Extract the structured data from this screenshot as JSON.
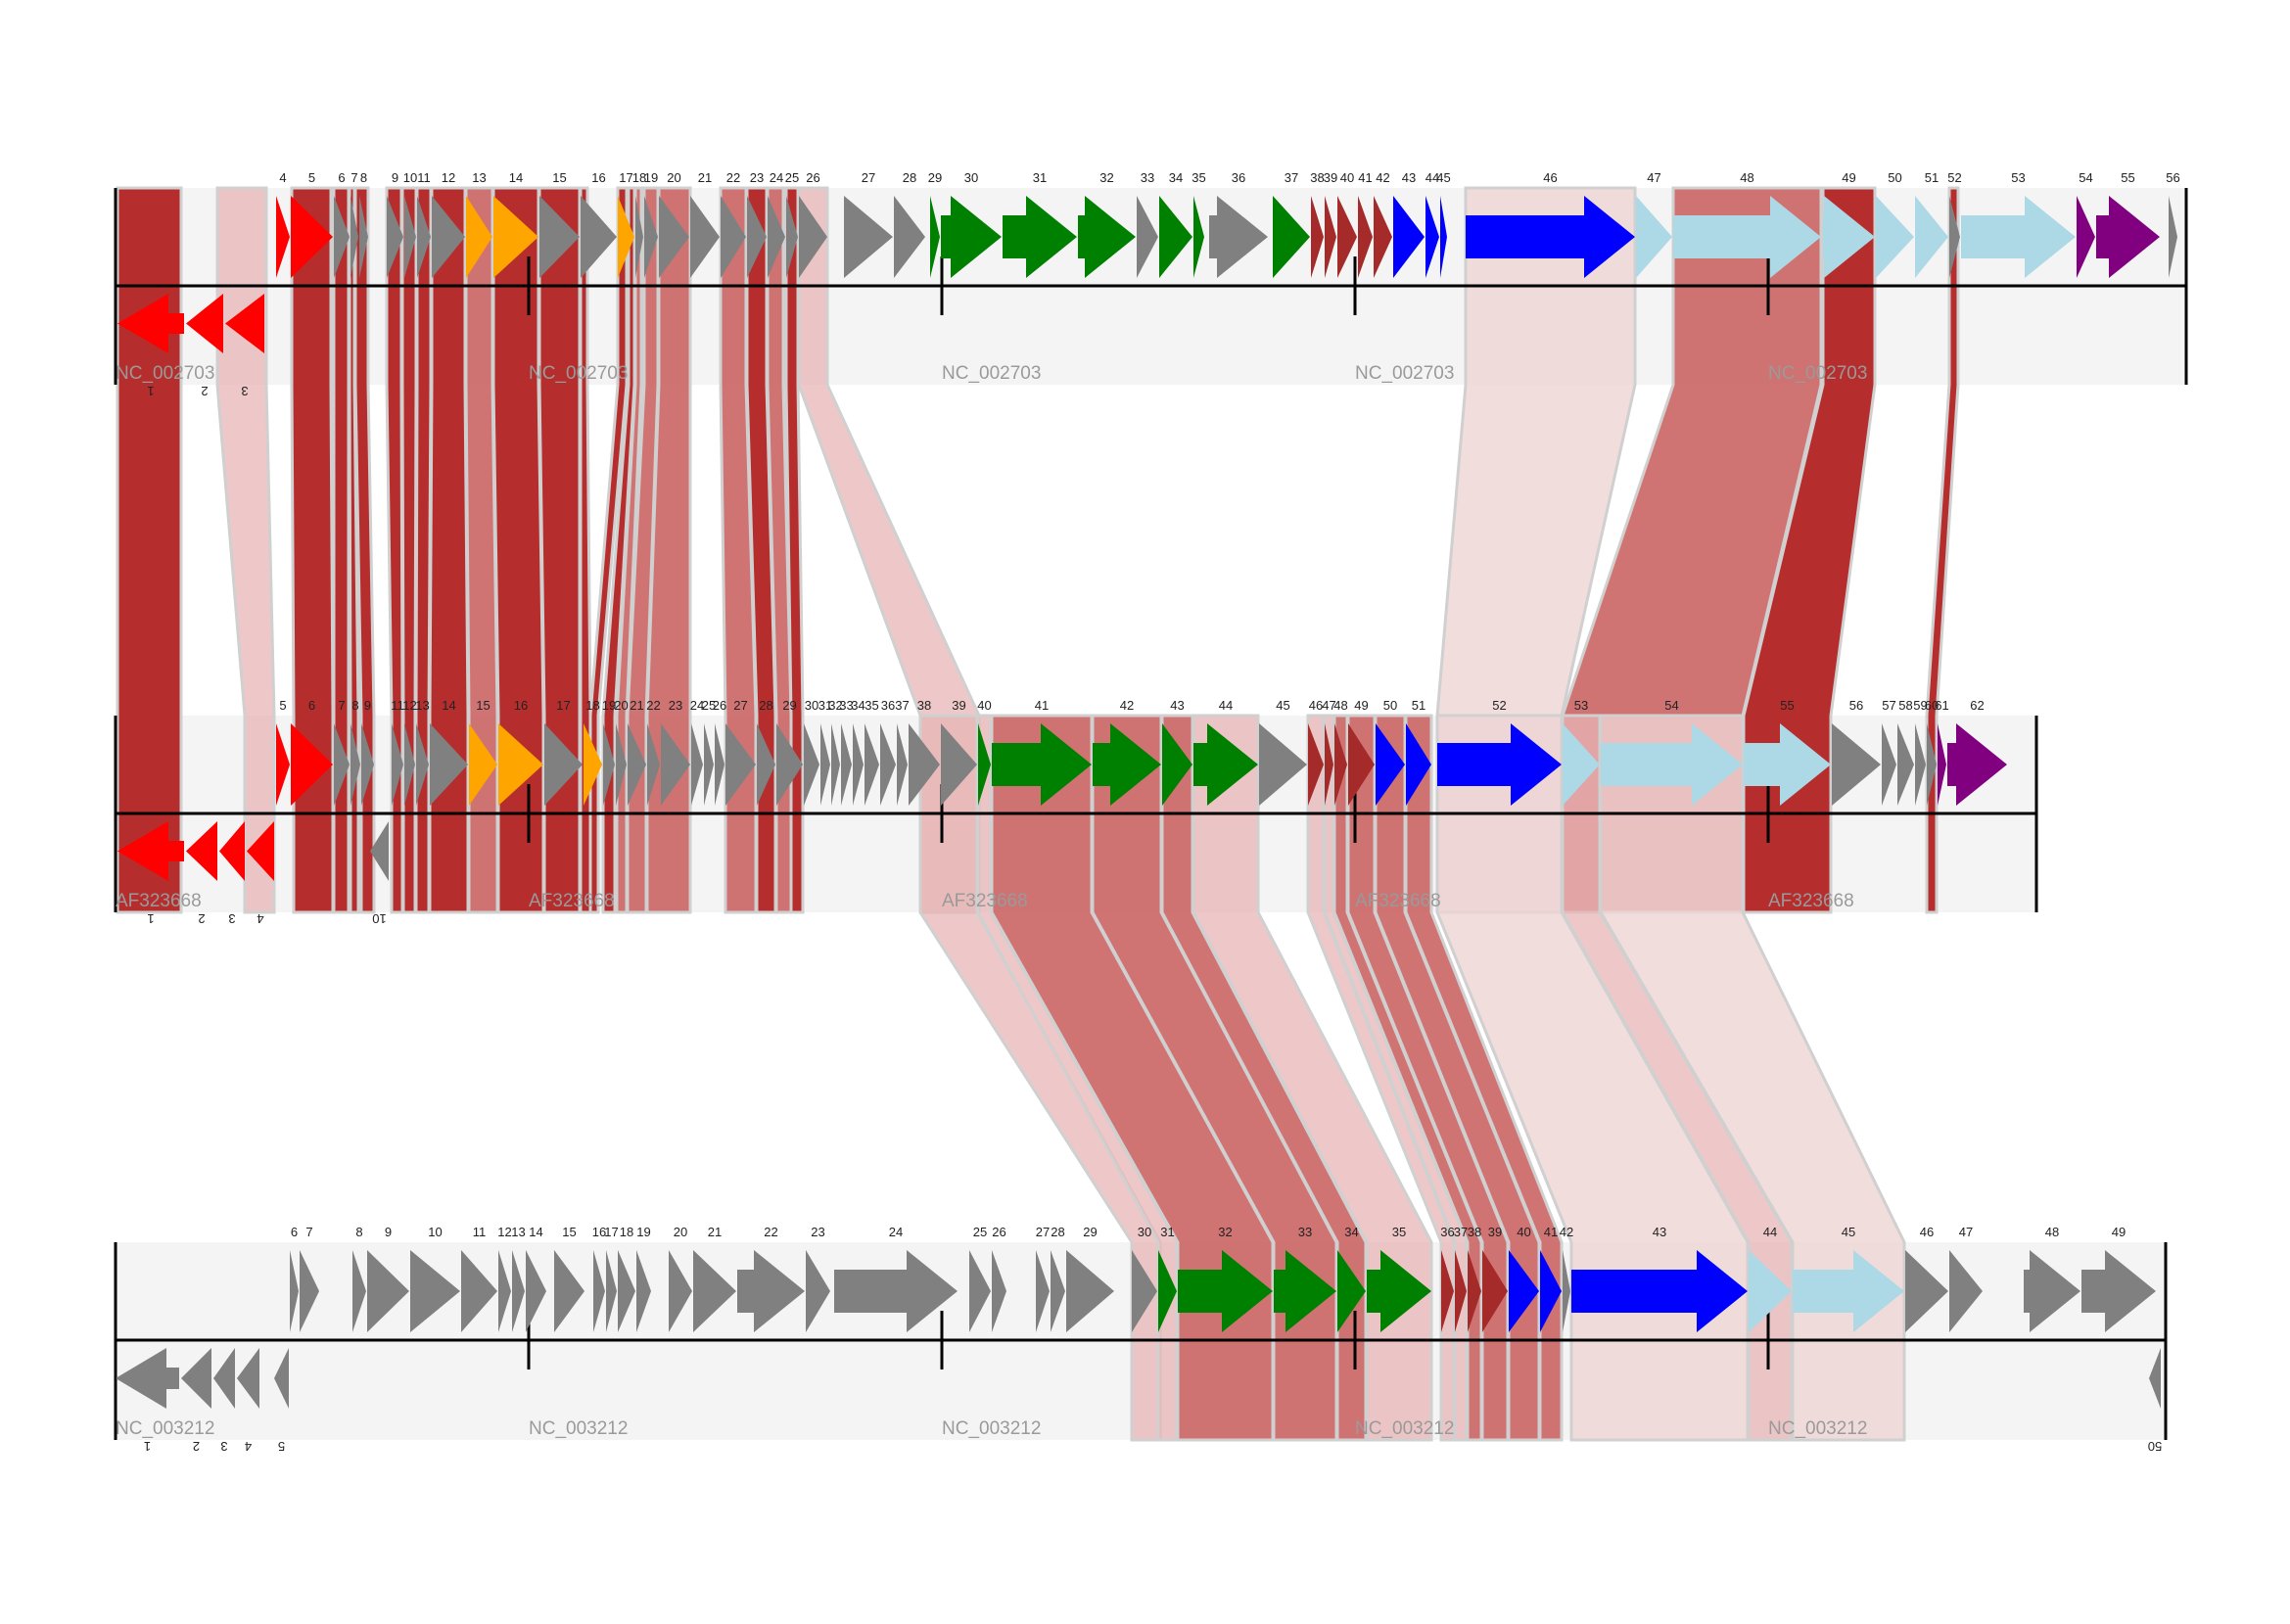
{
  "diagram": {
    "type": "genome-comparison",
    "colors": {
      "track_bg": "#f4f4f4",
      "axis": "#000000",
      "link_border": "#d0d0d0",
      "link_strong": "#b22222",
      "link_medium": "#c85a5a",
      "link_weak": "#e8b5b5",
      "link_faint": "#efd4d4"
    },
    "gene_colors": {
      "red": "#ff0000",
      "grey": "#808080",
      "orange": "#ffa500",
      "green": "#008000",
      "brown": "#a52a2a",
      "blue": "#0000ff",
      "lightblue": "#add8e6",
      "purple": "#800080"
    },
    "tracks": [
      {
        "name": "NC_002703",
        "genes": [
          {
            "id": "1",
            "color": "red",
            "strand": "-"
          },
          {
            "id": "2",
            "color": "red",
            "strand": "-"
          },
          {
            "id": "3",
            "color": "red",
            "strand": "-"
          },
          {
            "id": "4",
            "color": "red",
            "strand": "+"
          },
          {
            "id": "5",
            "color": "red",
            "strand": "+"
          },
          {
            "id": "6",
            "color": "grey",
            "strand": "+"
          },
          {
            "id": "7",
            "color": "grey",
            "strand": "+"
          },
          {
            "id": "8",
            "color": "grey",
            "strand": "+"
          },
          {
            "id": "9",
            "color": "grey",
            "strand": "+"
          },
          {
            "id": "10",
            "color": "grey",
            "strand": "+"
          },
          {
            "id": "11",
            "color": "grey",
            "strand": "+"
          },
          {
            "id": "12",
            "color": "grey",
            "strand": "+"
          },
          {
            "id": "13",
            "color": "orange",
            "strand": "+"
          },
          {
            "id": "14",
            "color": "orange",
            "strand": "+"
          },
          {
            "id": "15",
            "color": "grey",
            "strand": "+"
          },
          {
            "id": "16",
            "color": "grey",
            "strand": "+"
          },
          {
            "id": "17",
            "color": "orange",
            "strand": "+"
          },
          {
            "id": "18",
            "color": "grey",
            "strand": "+"
          },
          {
            "id": "19",
            "color": "grey",
            "strand": "+"
          },
          {
            "id": "20",
            "color": "grey",
            "strand": "+"
          },
          {
            "id": "21",
            "color": "grey",
            "strand": "+"
          },
          {
            "id": "22",
            "color": "grey",
            "strand": "+"
          },
          {
            "id": "23",
            "color": "grey",
            "strand": "+"
          },
          {
            "id": "24",
            "color": "grey",
            "strand": "+"
          },
          {
            "id": "25",
            "color": "grey",
            "strand": "+"
          },
          {
            "id": "26",
            "color": "grey",
            "strand": "+"
          },
          {
            "id": "27",
            "color": "grey",
            "strand": "+"
          },
          {
            "id": "28",
            "color": "grey",
            "strand": "+"
          },
          {
            "id": "29",
            "color": "green",
            "strand": "+"
          },
          {
            "id": "30",
            "color": "green",
            "strand": "+"
          },
          {
            "id": "31",
            "color": "green",
            "strand": "+"
          },
          {
            "id": "32",
            "color": "green",
            "strand": "+"
          },
          {
            "id": "33",
            "color": "grey",
            "strand": "+"
          },
          {
            "id": "34",
            "color": "green",
            "strand": "+"
          },
          {
            "id": "35",
            "color": "green",
            "strand": "+"
          },
          {
            "id": "36",
            "color": "grey",
            "strand": "+"
          },
          {
            "id": "37",
            "color": "green",
            "strand": "+"
          },
          {
            "id": "38",
            "color": "brown",
            "strand": "+"
          },
          {
            "id": "39",
            "color": "brown",
            "strand": "+"
          },
          {
            "id": "40",
            "color": "brown",
            "strand": "+"
          },
          {
            "id": "41",
            "color": "brown",
            "strand": "+"
          },
          {
            "id": "42",
            "color": "brown",
            "strand": "+"
          },
          {
            "id": "43",
            "color": "blue",
            "strand": "+"
          },
          {
            "id": "44",
            "color": "blue",
            "strand": "+"
          },
          {
            "id": "45",
            "color": "blue",
            "strand": "+"
          },
          {
            "id": "46",
            "color": "blue",
            "strand": "+"
          },
          {
            "id": "47",
            "color": "lightblue",
            "strand": "+"
          },
          {
            "id": "48",
            "color": "lightblue",
            "strand": "+"
          },
          {
            "id": "49",
            "color": "lightblue",
            "strand": "+"
          },
          {
            "id": "50",
            "color": "lightblue",
            "strand": "+"
          },
          {
            "id": "51",
            "color": "lightblue",
            "strand": "+"
          },
          {
            "id": "52",
            "color": "grey",
            "strand": "+"
          },
          {
            "id": "53",
            "color": "lightblue",
            "strand": "+"
          },
          {
            "id": "54",
            "color": "purple",
            "strand": "+"
          },
          {
            "id": "55",
            "color": "purple",
            "strand": "+"
          },
          {
            "id": "56",
            "color": "grey",
            "strand": "+"
          }
        ]
      },
      {
        "name": "AF323668",
        "genes": [
          {
            "id": "1",
            "color": "red",
            "strand": "-"
          },
          {
            "id": "2",
            "color": "red",
            "strand": "-"
          },
          {
            "id": "3",
            "color": "red",
            "strand": "-"
          },
          {
            "id": "4",
            "color": "red",
            "strand": "-"
          },
          {
            "id": "5",
            "color": "red",
            "strand": "+"
          },
          {
            "id": "6",
            "color": "red",
            "strand": "+"
          },
          {
            "id": "7",
            "color": "grey",
            "strand": "+"
          },
          {
            "id": "8",
            "color": "grey",
            "strand": "+"
          },
          {
            "id": "9",
            "color": "grey",
            "strand": "+"
          },
          {
            "id": "10",
            "color": "grey",
            "strand": "-"
          },
          {
            "id": "11",
            "color": "grey",
            "strand": "+"
          },
          {
            "id": "12",
            "color": "grey",
            "strand": "+"
          },
          {
            "id": "13",
            "color": "grey",
            "strand": "+"
          },
          {
            "id": "14",
            "color": "grey",
            "strand": "+"
          },
          {
            "id": "15",
            "color": "orange",
            "strand": "+"
          },
          {
            "id": "16",
            "color": "orange",
            "strand": "+"
          },
          {
            "id": "17",
            "color": "grey",
            "strand": "+"
          },
          {
            "id": "18",
            "color": "orange",
            "strand": "+"
          },
          {
            "id": "19",
            "color": "grey",
            "strand": "+"
          },
          {
            "id": "20",
            "color": "grey",
            "strand": "+"
          },
          {
            "id": "21",
            "color": "grey",
            "strand": "+"
          },
          {
            "id": "22",
            "color": "grey",
            "strand": "+"
          },
          {
            "id": "23",
            "color": "grey",
            "strand": "+"
          },
          {
            "id": "24",
            "color": "grey",
            "strand": "+"
          },
          {
            "id": "25",
            "color": "grey",
            "strand": "+"
          },
          {
            "id": "26",
            "color": "grey",
            "strand": "+"
          },
          {
            "id": "27",
            "color": "grey",
            "strand": "+"
          },
          {
            "id": "28",
            "color": "grey",
            "strand": "+"
          },
          {
            "id": "29",
            "color": "grey",
            "strand": "+"
          },
          {
            "id": "30",
            "color": "grey",
            "strand": "+"
          },
          {
            "id": "31",
            "color": "grey",
            "strand": "+"
          },
          {
            "id": "32",
            "color": "grey",
            "strand": "+"
          },
          {
            "id": "33",
            "color": "grey",
            "strand": "+"
          },
          {
            "id": "34",
            "color": "grey",
            "strand": "+"
          },
          {
            "id": "35",
            "color": "grey",
            "strand": "+"
          },
          {
            "id": "36",
            "color": "grey",
            "strand": "+"
          },
          {
            "id": "37",
            "color": "grey",
            "strand": "+"
          },
          {
            "id": "38",
            "color": "grey",
            "strand": "+"
          },
          {
            "id": "39",
            "color": "grey",
            "strand": "+"
          },
          {
            "id": "40",
            "color": "green",
            "strand": "+"
          },
          {
            "id": "41",
            "color": "green",
            "strand": "+"
          },
          {
            "id": "42",
            "color": "green",
            "strand": "+"
          },
          {
            "id": "43",
            "color": "green",
            "strand": "+"
          },
          {
            "id": "44",
            "color": "green",
            "strand": "+"
          },
          {
            "id": "45",
            "color": "grey",
            "strand": "+"
          },
          {
            "id": "46",
            "color": "brown",
            "strand": "+"
          },
          {
            "id": "47",
            "color": "brown",
            "strand": "+"
          },
          {
            "id": "48",
            "color": "brown",
            "strand": "+"
          },
          {
            "id": "49",
            "color": "brown",
            "strand": "+"
          },
          {
            "id": "50",
            "color": "blue",
            "strand": "+"
          },
          {
            "id": "51",
            "color": "blue",
            "strand": "+"
          },
          {
            "id": "52",
            "color": "blue",
            "strand": "+"
          },
          {
            "id": "53",
            "color": "lightblue",
            "strand": "+"
          },
          {
            "id": "54",
            "color": "lightblue",
            "strand": "+"
          },
          {
            "id": "55",
            "color": "lightblue",
            "strand": "+"
          },
          {
            "id": "56",
            "color": "grey",
            "strand": "+"
          },
          {
            "id": "57",
            "color": "grey",
            "strand": "+"
          },
          {
            "id": "58",
            "color": "grey",
            "strand": "+"
          },
          {
            "id": "59",
            "color": "grey",
            "strand": "+"
          },
          {
            "id": "60",
            "color": "grey",
            "strand": "+"
          },
          {
            "id": "61",
            "color": "purple",
            "strand": "+"
          },
          {
            "id": "62",
            "color": "purple",
            "strand": "+"
          }
        ]
      },
      {
        "name": "NC_003212",
        "genes": [
          {
            "id": "1",
            "color": "grey",
            "strand": "-"
          },
          {
            "id": "2",
            "color": "grey",
            "strand": "-"
          },
          {
            "id": "3",
            "color": "grey",
            "strand": "-"
          },
          {
            "id": "4",
            "color": "grey",
            "strand": "-"
          },
          {
            "id": "5",
            "color": "grey",
            "strand": "-"
          },
          {
            "id": "6",
            "color": "grey",
            "strand": "+"
          },
          {
            "id": "7",
            "color": "grey",
            "strand": "+"
          },
          {
            "id": "8",
            "color": "grey",
            "strand": "+"
          },
          {
            "id": "9",
            "color": "grey",
            "strand": "+"
          },
          {
            "id": "10",
            "color": "grey",
            "strand": "+"
          },
          {
            "id": "11",
            "color": "grey",
            "strand": "+"
          },
          {
            "id": "12",
            "color": "grey",
            "strand": "+"
          },
          {
            "id": "13",
            "color": "grey",
            "strand": "+"
          },
          {
            "id": "14",
            "color": "grey",
            "strand": "+"
          },
          {
            "id": "15",
            "color": "grey",
            "strand": "+"
          },
          {
            "id": "16",
            "color": "grey",
            "strand": "+"
          },
          {
            "id": "17",
            "color": "grey",
            "strand": "+"
          },
          {
            "id": "18",
            "color": "grey",
            "strand": "+"
          },
          {
            "id": "19",
            "color": "grey",
            "strand": "+"
          },
          {
            "id": "20",
            "color": "grey",
            "strand": "+"
          },
          {
            "id": "21",
            "color": "grey",
            "strand": "+"
          },
          {
            "id": "22",
            "color": "grey",
            "strand": "+"
          },
          {
            "id": "23",
            "color": "grey",
            "strand": "+"
          },
          {
            "id": "24",
            "color": "grey",
            "strand": "+"
          },
          {
            "id": "25",
            "color": "grey",
            "strand": "+"
          },
          {
            "id": "26",
            "color": "grey",
            "strand": "+"
          },
          {
            "id": "27",
            "color": "grey",
            "strand": "+"
          },
          {
            "id": "28",
            "color": "grey",
            "strand": "+"
          },
          {
            "id": "29",
            "color": "grey",
            "strand": "+"
          },
          {
            "id": "30",
            "color": "grey",
            "strand": "+"
          },
          {
            "id": "31",
            "color": "green",
            "strand": "+"
          },
          {
            "id": "32",
            "color": "green",
            "strand": "+"
          },
          {
            "id": "33",
            "color": "green",
            "strand": "+"
          },
          {
            "id": "34",
            "color": "green",
            "strand": "+"
          },
          {
            "id": "35",
            "color": "green",
            "strand": "+"
          },
          {
            "id": "36",
            "color": "brown",
            "strand": "+"
          },
          {
            "id": "37",
            "color": "brown",
            "strand": "+"
          },
          {
            "id": "38",
            "color": "brown",
            "strand": "+"
          },
          {
            "id": "39",
            "color": "brown",
            "strand": "+"
          },
          {
            "id": "40",
            "color": "blue",
            "strand": "+"
          },
          {
            "id": "41",
            "color": "blue",
            "strand": "+"
          },
          {
            "id": "42",
            "color": "grey",
            "strand": "+"
          },
          {
            "id": "43",
            "color": "blue",
            "strand": "+"
          },
          {
            "id": "44",
            "color": "lightblue",
            "strand": "+"
          },
          {
            "id": "45",
            "color": "lightblue",
            "strand": "+"
          },
          {
            "id": "46",
            "color": "grey",
            "strand": "+"
          },
          {
            "id": "47",
            "color": "grey",
            "strand": "+"
          },
          {
            "id": "48",
            "color": "grey",
            "strand": "+"
          },
          {
            "id": "49",
            "color": "grey",
            "strand": "+"
          },
          {
            "id": "50",
            "color": "grey",
            "strand": "-"
          }
        ]
      }
    ]
  }
}
